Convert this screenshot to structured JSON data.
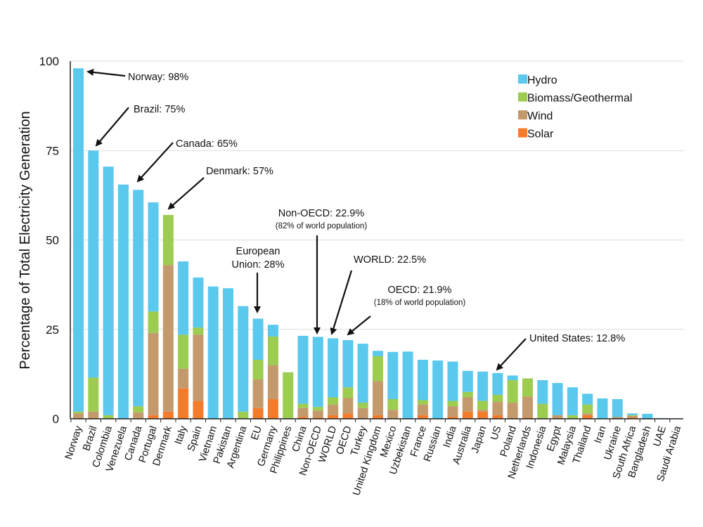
{
  "colors": {
    "hydro": "#5bc8ee",
    "biomass": "#9ccc50",
    "wind": "#c49a6c",
    "solar": "#f47b2a",
    "grid": "#dddddd",
    "axis": "#222222"
  },
  "chart_data": {
    "type": "bar",
    "stacked": true,
    "ylabel": "Percentage of Total Electricity Generation",
    "ylim": [
      0,
      100
    ],
    "yticks": [
      "0",
      "25",
      "50",
      "75",
      "100"
    ],
    "grid": true,
    "legend_position": "top-right",
    "categories": [
      "Norway",
      "Brazil",
      "Colombia",
      "Venezuela",
      "Canada",
      "Portugal",
      "Denmark",
      "Italy",
      "Spain",
      "Vietnam",
      "Pakistan",
      "Argentina",
      "EU",
      "Germany",
      "Philippines",
      "China",
      "Non-OECD",
      "WORLD",
      "OECD",
      "Turkey",
      "United Kingdom",
      "Mexico",
      "Uzbekistan",
      "France",
      "Russian",
      "India",
      "Australia",
      "Japan",
      "US",
      "Poland",
      "Netherlands",
      "Indonesia",
      "Egypt",
      "Malaysia",
      "Thailand",
      "Iran",
      "Ukraine",
      "South Africa",
      "Bangladesh",
      "UAE",
      "Saudi Arabia"
    ],
    "series": [
      {
        "name": "Solar",
        "key": "solar",
        "values": [
          0,
          0,
          0,
          0,
          0,
          1,
          2,
          8.5,
          5,
          0,
          0,
          0,
          3,
          5.5,
          0,
          0.5,
          0.3,
          1,
          1.5,
          0,
          1,
          0,
          0,
          1,
          0,
          0.5,
          2,
          2,
          1,
          0,
          0.3,
          0,
          0,
          0,
          1,
          0,
          0,
          0.3,
          0,
          0,
          0
        ]
      },
      {
        "name": "Wind",
        "key": "wind",
        "values": [
          1.5,
          2,
          0,
          0,
          1.8,
          23,
          41,
          5.5,
          18.5,
          0,
          0,
          0,
          8,
          9.5,
          0,
          2.5,
          2,
          3,
          4.3,
          3,
          9.5,
          2.5,
          0,
          3,
          0,
          3,
          4,
          0.5,
          3.7,
          4.5,
          5.9,
          0,
          1,
          0,
          0.5,
          0,
          0.5,
          0.5,
          0,
          0,
          0
        ]
      },
      {
        "name": "Biomass/Geothermal",
        "key": "biomass",
        "values": [
          0.5,
          9.5,
          1,
          0,
          1.7,
          6,
          14,
          9.5,
          2,
          0,
          0,
          2,
          5.5,
          8,
          13,
          1.2,
          1,
          2,
          3,
          1.5,
          7,
          3,
          0,
          1.2,
          0,
          1.5,
          1.5,
          2.5,
          2,
          6.3,
          5.1,
          4.2,
          0,
          1,
          2.5,
          0,
          0,
          0.2,
          0,
          0,
          0
        ]
      },
      {
        "name": "Hydro",
        "key": "hydro",
        "values": [
          96,
          63.5,
          69.5,
          65.5,
          60.5,
          30.5,
          0,
          20.5,
          14,
          37,
          36.5,
          29.5,
          11.5,
          3.3,
          0,
          19,
          19.6,
          16.5,
          13.2,
          16.5,
          1.5,
          13.2,
          18.8,
          11.3,
          16.3,
          11,
          5.9,
          8.2,
          6.1,
          1.3,
          0,
          6.6,
          9,
          7.8,
          3,
          5.7,
          5,
          0.5,
          1.4,
          0.2,
          0
        ]
      }
    ],
    "legend": [
      {
        "label": "Hydro",
        "key": "hydro"
      },
      {
        "label": "Biomass/Geothermal",
        "key": "biomass"
      },
      {
        "label": "Wind",
        "key": "wind"
      },
      {
        "label": "Solar",
        "key": "solar"
      }
    ],
    "annotations": [
      {
        "text": "Norway: 98%",
        "sub": "",
        "target": "Norway",
        "value": 98
      },
      {
        "text": "Brazil: 75%",
        "sub": "",
        "target": "Brazil",
        "value": 75
      },
      {
        "text": "Canada: 65%",
        "sub": "",
        "target": "Canada",
        "value": 65
      },
      {
        "text": "Denmark: 57%",
        "sub": "",
        "target": "Denmark",
        "value": 57
      },
      {
        "text": "Non-OECD: 22.9%",
        "sub": "(82% of world population)",
        "target": "Non-OECD",
        "value": 22.9
      },
      {
        "text": "European",
        "sub": "",
        "target": "EU",
        "value": 28
      },
      {
        "text": "Union: 28%",
        "sub": "",
        "target": "EU",
        "value": 28
      },
      {
        "text": "WORLD: 22.5%",
        "sub": "",
        "target": "WORLD",
        "value": 22.5
      },
      {
        "text": "OECD: 21.9%",
        "sub": "(18% of world population)",
        "target": "OECD",
        "value": 21.9
      },
      {
        "text": "United States: 12.8%",
        "sub": "",
        "target": "US",
        "value": 12.8
      }
    ]
  }
}
